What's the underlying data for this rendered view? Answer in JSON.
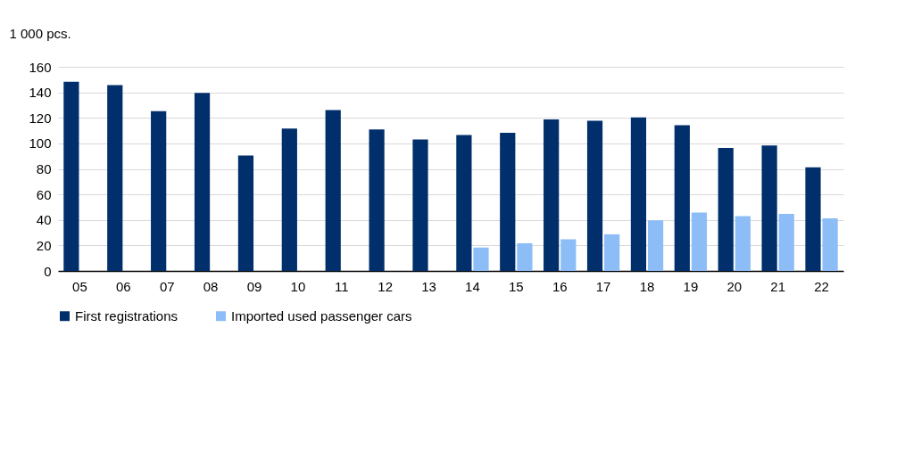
{
  "chart_data": {
    "type": "bar",
    "ylabel": "1 000 pcs.",
    "categories": [
      "05",
      "06",
      "07",
      "08",
      "09",
      "10",
      "11",
      "12",
      "13",
      "14",
      "15",
      "16",
      "17",
      "18",
      "19",
      "20",
      "21",
      "22"
    ],
    "series": [
      {
        "name": "First registrations",
        "color": "#002f6c",
        "values": [
          148.3,
          145.7,
          125.2,
          139.6,
          90.4,
          111.7,
          126.1,
          110.9,
          103,
          106.5,
          108.3,
          118.7,
          117.8,
          120.4,
          114.3,
          96.5,
          98.3,
          81.3
        ]
      },
      {
        "name": "Imported used passenger cars",
        "color": "#8dbdf7",
        "values": [
          null,
          null,
          null,
          null,
          null,
          null,
          null,
          null,
          null,
          18.3,
          21.7,
          24.8,
          28.7,
          39.6,
          45.7,
          43,
          44.8,
          41.3
        ]
      }
    ],
    "ylim": [
      0,
      160
    ],
    "yticks": [
      0,
      20,
      40,
      60,
      80,
      100,
      120,
      140,
      160
    ],
    "grid": "y",
    "legend": "bottom"
  }
}
